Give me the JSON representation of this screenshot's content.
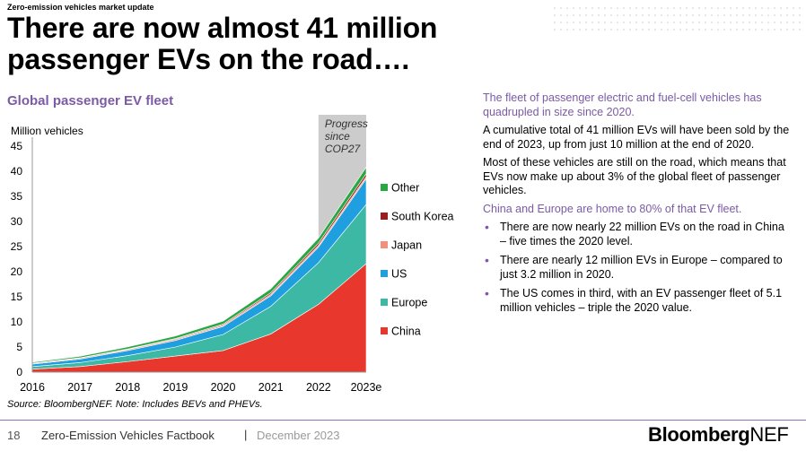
{
  "header": {
    "kicker": "Zero-emission vehicles market update",
    "headline": "There are now almost 41 million passenger EVs on the road…."
  },
  "chart_title": "Global passenger EV fleet",
  "chart_data": {
    "type": "area",
    "title": "Global passenger EV fleet",
    "ylabel": "Million vehicles",
    "xlabel": "",
    "categories": [
      "2016",
      "2017",
      "2018",
      "2019",
      "2020",
      "2021",
      "2022",
      "2023e"
    ],
    "ylim": [
      0,
      45
    ],
    "yticks": [
      0,
      5,
      10,
      15,
      20,
      25,
      30,
      35,
      40,
      45
    ],
    "series": [
      {
        "name": "China",
        "color": "#e8372c",
        "values": [
          0.6,
          1.1,
          2.1,
          3.2,
          4.3,
          7.6,
          13.5,
          21.6
        ]
      },
      {
        "name": "Europe",
        "color": "#3cb8a4",
        "values": [
          0.5,
          0.8,
          1.2,
          1.8,
          3.2,
          5.5,
          8.3,
          11.8
        ]
      },
      {
        "name": "US",
        "color": "#1f9fe0",
        "values": [
          0.5,
          0.7,
          1.0,
          1.3,
          1.6,
          2.1,
          3.1,
          5.1
        ]
      },
      {
        "name": "Japan",
        "color": "#f2907c",
        "values": [
          0.15,
          0.2,
          0.22,
          0.24,
          0.26,
          0.3,
          0.36,
          0.42
        ]
      },
      {
        "name": "South Korea",
        "color": "#9b1d1d",
        "values": [
          0.03,
          0.06,
          0.1,
          0.15,
          0.2,
          0.3,
          0.45,
          0.6
        ]
      },
      {
        "name": "Other",
        "color": "#27a843",
        "values": [
          0.2,
          0.3,
          0.4,
          0.5,
          0.6,
          0.8,
          1.0,
          1.3
        ]
      }
    ],
    "highlight": {
      "label": "Progress since COP27",
      "from": "2022",
      "to": "2023e",
      "color": "#cccccc"
    },
    "legend_position": "right"
  },
  "source_note": "Source: BloombergNEF. Note: Includes BEVs and PHEVs.",
  "right_panel": {
    "intro": "The fleet of passenger electric and fuel-cell vehicles has quadrupled in size since 2020.",
    "p1": "A cumulative total of 41 million EVs will have been sold by the end of 2023, up from just 10 million at the end of 2020.",
    "p2": "Most of these vehicles are still on the road, which means that EVs now make up about 3% of the global fleet of passenger vehicles.",
    "subhead": "China and Europe are home to 80% of that EV fleet.",
    "bullets": [
      "There are now nearly 22 million EVs on the road in China – five times the 2020 level.",
      "There are nearly 12 million EVs in Europe – compared to just 3.2 million in 2020.",
      "The US comes in third, with an EV passenger fleet of 5.1 million vehicles – triple the 2020 value."
    ]
  },
  "footer": {
    "page_number": "18",
    "title": "Zero-Emission Vehicles Factbook",
    "separator": "|",
    "date": "December 2023",
    "logo_bold": "Bloomberg",
    "logo_light": "NEF"
  },
  "colors": {
    "accent": "#7b5aa6",
    "rule": "#8f6fb5"
  }
}
